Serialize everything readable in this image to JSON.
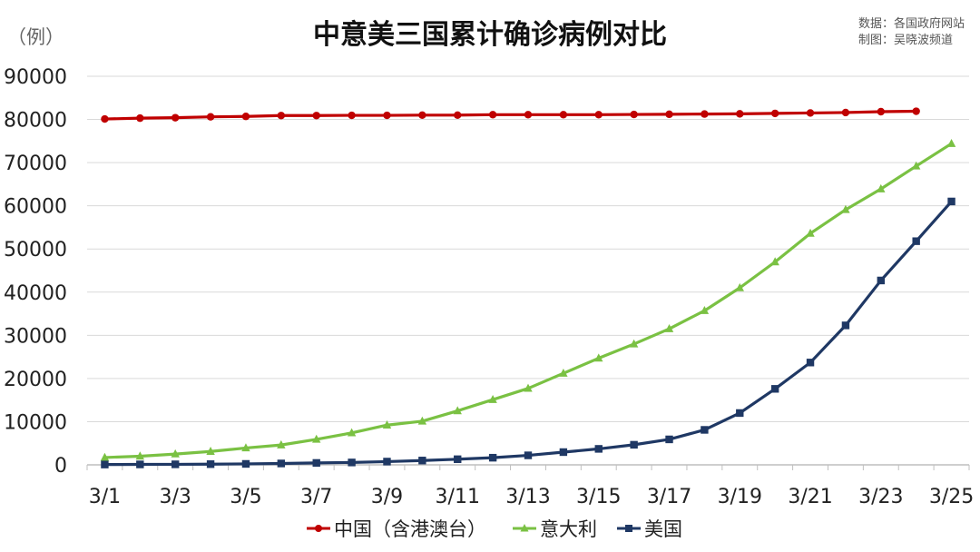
{
  "chart_data": {
    "type": "line",
    "title": "中意美三国累计确诊病例对比",
    "unit_label": "（例）",
    "source_lines": [
      "数据：各国政府网站",
      "制图：吴晓波频道"
    ],
    "ylim": [
      0,
      90000
    ],
    "yticks": [
      "0",
      "10000",
      "20000",
      "30000",
      "40000",
      "50000",
      "60000",
      "70000",
      "80000",
      "90000"
    ],
    "x": [
      "3/1",
      "3/2",
      "3/3",
      "3/4",
      "3/5",
      "3/6",
      "3/7",
      "3/8",
      "3/9",
      "3/10",
      "3/11",
      "3/12",
      "3/13",
      "3/14",
      "3/15",
      "3/16",
      "3/17",
      "3/18",
      "3/19",
      "3/20",
      "3/21",
      "3/22",
      "3/23",
      "3/24",
      "3/25"
    ],
    "xtick_labels": [
      "3/1",
      "3/3",
      "3/5",
      "3/7",
      "3/9",
      "3/11",
      "3/13",
      "3/15",
      "3/17",
      "3/19",
      "3/21",
      "3/23",
      "3/25"
    ],
    "grid": true,
    "legend_position": "bottom",
    "series": [
      {
        "name": "中国（含港澳台）",
        "color": "#c00000",
        "marker": "circle",
        "values": [
          80100,
          80300,
          80400,
          80600,
          80700,
          80900,
          80900,
          80950,
          80950,
          81000,
          81000,
          81100,
          81100,
          81100,
          81100,
          81150,
          81200,
          81250,
          81300,
          81400,
          81500,
          81600,
          81800,
          81900,
          null
        ]
      },
      {
        "name": "意大利",
        "color": "#7ac143",
        "marker": "triangle",
        "values": [
          1700,
          2000,
          2500,
          3100,
          3900,
          4600,
          5900,
          7400,
          9200,
          10100,
          12500,
          15100,
          17700,
          21200,
          24700,
          27980,
          31500,
          35700,
          41000,
          47000,
          53600,
          59100,
          63900,
          69200,
          74400
        ]
      },
      {
        "name": "美国",
        "color": "#1f3864",
        "marker": "square",
        "values": [
          75,
          100,
          120,
          160,
          220,
          320,
          440,
          550,
          750,
          1000,
          1300,
          1650,
          2200,
          2950,
          3700,
          4650,
          5900,
          8100,
          12000,
          17600,
          23700,
          32300,
          42700,
          51800,
          61000
        ]
      }
    ]
  }
}
